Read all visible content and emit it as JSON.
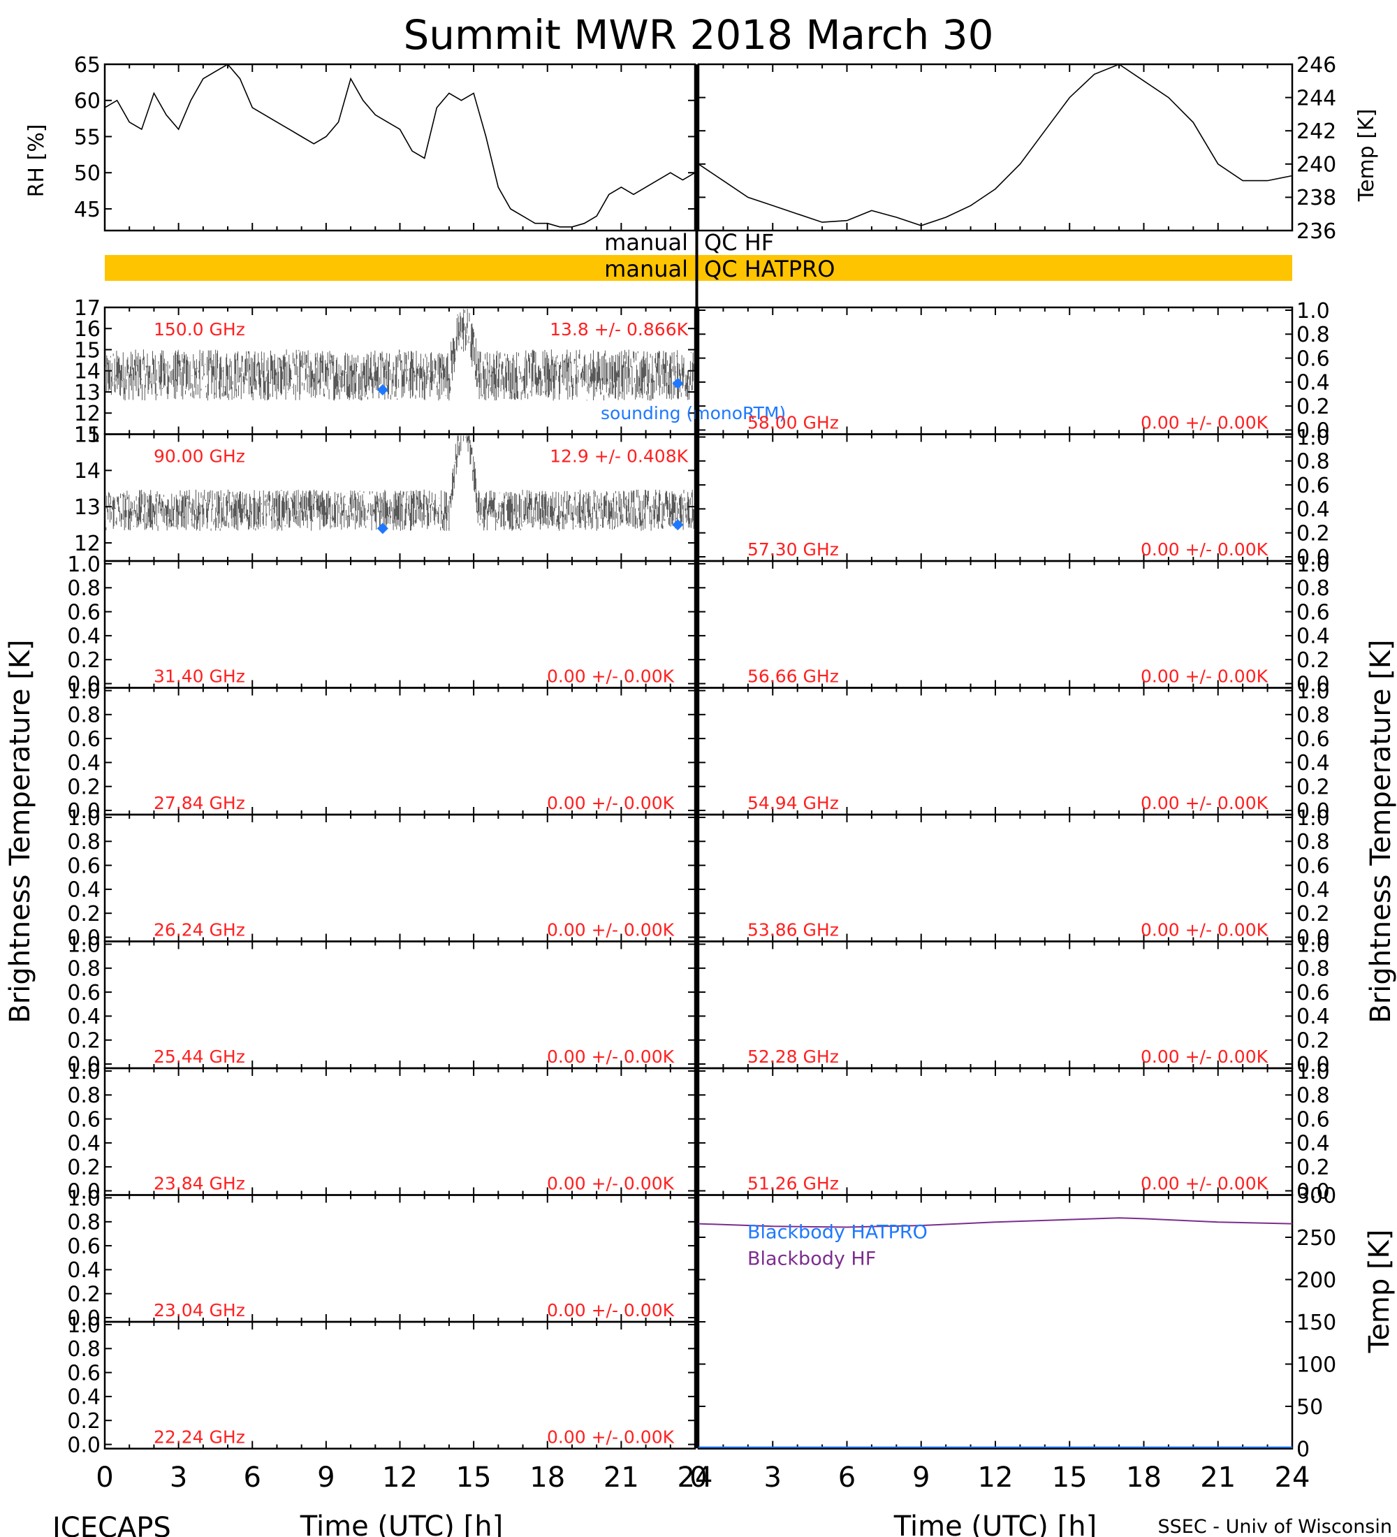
{
  "title": "Summit MWR 2018 March 30",
  "footer": {
    "left": "ICECAPS",
    "right": "SSEC - Univ of Wisconsin",
    "xlabel_left": "Time (UTC) [h]",
    "xlabel_right": "Time (UTC) [h]"
  },
  "colors": {
    "ink": "#000000",
    "label_red": "#ff2020",
    "sounding_blue": "#1e78ff",
    "qc_bar": "#ffc400",
    "blackbody_hf": "#7b2d8e",
    "blackbody_hatpro": "#1e78ff"
  },
  "qc": {
    "row1_left": "manual",
    "row1_right": "QC HF",
    "row2_left": "manual",
    "row2_right": "QC HATPRO"
  },
  "side_labels": {
    "left_tb": "Brightness Temperature [K]",
    "right_tb": "Brightness Temperature [K]",
    "rh": "RH [%]",
    "temp_top": "Temp [K]",
    "temp_bb": "Temp [K]"
  },
  "sounding_label": "sounding (monoRTM)",
  "blackbody_labels": [
    "Blackbody HATPRO",
    "Blackbody HF"
  ],
  "chart_data": [
    {
      "type": "line",
      "name": "rh",
      "x_ticks": [
        0,
        3,
        6,
        9,
        12,
        15,
        18,
        21
      ],
      "xlim": [
        0,
        24
      ],
      "ylim": [
        42,
        65
      ],
      "y_ticks": [
        45,
        50,
        55,
        60,
        65
      ],
      "ylabel": "RH [%]",
      "x": [
        0,
        0.5,
        1,
        1.5,
        2,
        2.5,
        3,
        3.5,
        4,
        4.5,
        5,
        5.5,
        6,
        6.5,
        7,
        7.5,
        8,
        8.5,
        9,
        9.5,
        10,
        10.5,
        11,
        11.5,
        12,
        12.5,
        13,
        13.5,
        14,
        14.5,
        15,
        15.5,
        16,
        16.5,
        17,
        17.5,
        18,
        18.5,
        19,
        19.5,
        20,
        20.5,
        21,
        21.5,
        22,
        22.5,
        23,
        23.5,
        24
      ],
      "y": [
        59,
        60,
        57,
        56,
        61,
        58,
        56,
        60,
        63,
        64,
        65,
        63,
        59,
        58,
        57,
        56,
        55,
        54,
        55,
        57,
        63,
        60,
        58,
        57,
        56,
        53,
        52,
        59,
        61,
        60,
        61,
        55,
        48,
        45,
        44,
        43,
        43,
        42.5,
        42.5,
        43,
        44,
        47,
        48,
        47,
        48,
        49,
        50,
        49,
        50
      ]
    },
    {
      "type": "line",
      "name": "temp",
      "xlim": [
        24,
        48
      ],
      "ylim": [
        236,
        246
      ],
      "y_ticks": [
        236,
        238,
        240,
        242,
        244,
        246
      ],
      "ylabel": "Temp [K]",
      "x": [
        24,
        25,
        26,
        27,
        28,
        29,
        30,
        31,
        32,
        33,
        34,
        35,
        36,
        37,
        38,
        39,
        40,
        41,
        42,
        43,
        44,
        45,
        46,
        47,
        48
      ],
      "y": [
        240,
        239,
        238,
        237.5,
        237,
        236.5,
        236.6,
        237.2,
        236.8,
        236.3,
        236.8,
        237.5,
        238.5,
        240,
        242,
        244,
        245.4,
        246,
        245,
        244,
        242.5,
        240,
        239,
        239,
        239.3
      ]
    },
    {
      "type": "scatter",
      "name": "tb-150",
      "frequency_label": "150.0 GHz",
      "stats_label": "13.8 +/- 0.866K",
      "ylim": [
        11,
        17
      ],
      "y_ticks": [
        11,
        12,
        13,
        14,
        15,
        16,
        17
      ],
      "mean": 13.8,
      "std": 0.866,
      "sounding_points": [
        [
          11.3,
          13.1
        ],
        [
          23.3,
          13.4
        ]
      ]
    },
    {
      "type": "scatter",
      "name": "tb-90",
      "frequency_label": "90.00 GHz",
      "stats_label": "12.9 +/- 0.408K",
      "ylim": [
        11.5,
        15
      ],
      "y_ticks": [
        12,
        13,
        14,
        15
      ],
      "mean": 12.9,
      "std": 0.408,
      "sounding_points": [
        [
          11.3,
          12.4
        ],
        [
          23.3,
          12.5
        ]
      ]
    },
    {
      "type": "line",
      "name": "blackbody",
      "ylim": [
        0,
        300
      ],
      "y_ticks": [
        0,
        50,
        100,
        150,
        200,
        250,
        300
      ],
      "ylabel": "Temp [K]",
      "series": [
        {
          "name": "Blackbody HF",
          "x": [
            0,
            3,
            6,
            9,
            12,
            15,
            17,
            18,
            21,
            24
          ],
          "y": [
            266,
            263,
            262,
            264,
            268,
            271,
            273,
            272,
            268,
            266
          ]
        },
        {
          "name": "Blackbody HATPRO",
          "x": [
            0,
            24
          ],
          "y": [
            0,
            0
          ]
        }
      ]
    }
  ],
  "empty_panels_left": [
    {
      "freq": "31.40 GHz",
      "stats": "0.00 +/- 0.00K"
    },
    {
      "freq": "27.84 GHz",
      "stats": "0.00 +/- 0.00K"
    },
    {
      "freq": "26.24 GHz",
      "stats": "0.00 +/- 0.00K"
    },
    {
      "freq": "25.44 GHz",
      "stats": "0.00 +/- 0.00K"
    },
    {
      "freq": "23.84 GHz",
      "stats": "0.00 +/- 0.00K"
    },
    {
      "freq": "23.04 GHz",
      "stats": "0.00 +/- 0.00K"
    },
    {
      "freq": "22.24 GHz",
      "stats": "0.00 +/- 0.00K"
    }
  ],
  "empty_panels_right": [
    {
      "freq": "58.00 GHz",
      "stats": "0.00 +/- 0.00K"
    },
    {
      "freq": "57.30 GHz",
      "stats": "0.00 +/- 0.00K"
    },
    {
      "freq": "56.66 GHz",
      "stats": "0.00 +/- 0.00K"
    },
    {
      "freq": "54.94 GHz",
      "stats": "0.00 +/- 0.00K"
    },
    {
      "freq": "53.86 GHz",
      "stats": "0.00 +/- 0.00K"
    },
    {
      "freq": "52.28 GHz",
      "stats": "0.00 +/- 0.00K"
    },
    {
      "freq": "51.26 GHz",
      "stats": "0.00 +/- 0.00K"
    }
  ],
  "empty_axis_ticks": [
    "0.0",
    "0.2",
    "0.4",
    "0.6",
    "0.8",
    "1.0"
  ],
  "x_axis_ticks": [
    "0",
    "3",
    "6",
    "9",
    "12",
    "15",
    "18",
    "21",
    "24"
  ]
}
